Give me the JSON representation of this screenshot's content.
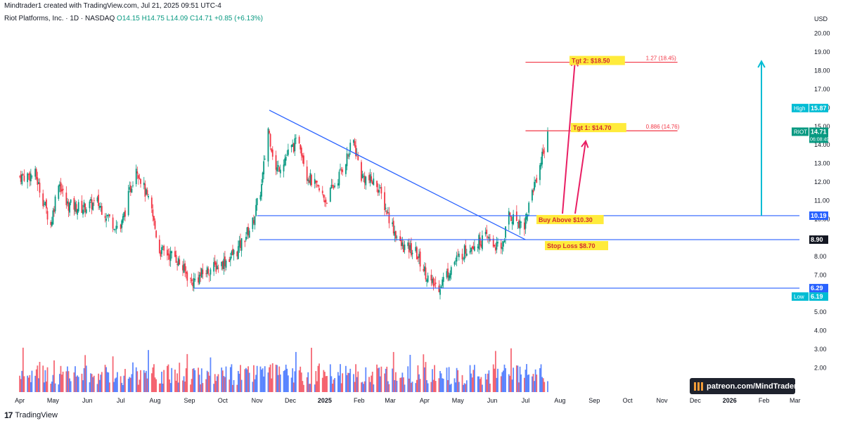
{
  "header": {
    "published_by": "Mindtrader1 created with TradingView.com, Jul 21, 2025 09:51 UTC-4",
    "symbol_line": "Riot Platforms, Inc. · 1D · NASDAQ",
    "ohlc": "O14.15 H14.75 L14.09 C14.71 +0.85 (+6.13%)"
  },
  "footer": {
    "brand": "TradingView",
    "logo": "tradingview-logo-icon"
  },
  "watermark": "patreon.com/MindTrader",
  "colors": {
    "up": "#089981",
    "down": "#f23645",
    "level_line": "#2962ff",
    "target_line": "#f23645",
    "arrow": "#e91e63",
    "move_arrow": "#00bcd4",
    "label_bg": "#ffeb3b",
    "label_text": "#d32f2f",
    "watermark_bg": "#1e222d"
  },
  "chart_data": {
    "type": "candlestick",
    "title": "Riot Platforms, Inc. · 1D · NASDAQ",
    "currency": "USD",
    "y_ticks": [
      2.0,
      3.0,
      4.0,
      5.0,
      6.0,
      7.0,
      8.0,
      9.0,
      10.0,
      11.0,
      12.0,
      13.0,
      14.0,
      15.0,
      16.0,
      17.0,
      18.0,
      19.0,
      20.0
    ],
    "y_range": [
      1.3,
      20.4
    ],
    "x_labels": [
      "Apr",
      "May",
      "Jun",
      "Jul",
      "Aug",
      "Sep",
      "Oct",
      "Nov",
      "Dec",
      "2025",
      "Feb",
      "Mar",
      "Apr",
      "May",
      "Jun",
      "Jul",
      "Aug",
      "Sep",
      "Oct",
      "Nov",
      "Dec",
      "2026",
      "Feb",
      "Mar"
    ],
    "series_close": [
      [
        "2024-04-01",
        12.3
      ],
      [
        "2024-04-15",
        12.4
      ],
      [
        "2024-04-29",
        9.7
      ],
      [
        "2024-05-06",
        12.1
      ],
      [
        "2024-05-13",
        10.8
      ],
      [
        "2024-05-27",
        10.6
      ],
      [
        "2024-06-10",
        10.9
      ],
      [
        "2024-06-24",
        9.8
      ],
      [
        "2024-07-01",
        9.5
      ],
      [
        "2024-07-15",
        12.9
      ],
      [
        "2024-07-29",
        10.4
      ],
      [
        "2024-08-05",
        8.3
      ],
      [
        "2024-08-19",
        8.0
      ],
      [
        "2024-09-03",
        6.6
      ],
      [
        "2024-09-16",
        7.2
      ],
      [
        "2024-09-30",
        7.6
      ],
      [
        "2024-10-14",
        8.3
      ],
      [
        "2024-10-28",
        9.8
      ],
      [
        "2024-11-05",
        11.8
      ],
      [
        "2024-11-11",
        14.9
      ],
      [
        "2024-11-18",
        12.6
      ],
      [
        "2024-12-02",
        13.8
      ],
      [
        "2024-12-09",
        14.3
      ],
      [
        "2024-12-16",
        12.4
      ],
      [
        "2025-01-02",
        11.0
      ],
      [
        "2025-01-13",
        12.2
      ],
      [
        "2025-01-27",
        14.2
      ],
      [
        "2025-02-03",
        12.3
      ],
      [
        "2025-02-17",
        11.9
      ],
      [
        "2025-02-28",
        10.1
      ],
      [
        "2025-03-10",
        8.6
      ],
      [
        "2025-03-24",
        8.2
      ],
      [
        "2025-04-07",
        6.5
      ],
      [
        "2025-04-14",
        6.4
      ],
      [
        "2025-04-28",
        7.7
      ],
      [
        "2025-05-12",
        8.6
      ],
      [
        "2025-05-27",
        9.0
      ],
      [
        "2025-06-09",
        8.3
      ],
      [
        "2025-06-16",
        10.2
      ],
      [
        "2025-06-30",
        9.7
      ],
      [
        "2025-07-07",
        11.5
      ],
      [
        "2025-07-14",
        12.9
      ],
      [
        "2025-07-21",
        14.71
      ]
    ],
    "levels": [
      {
        "name": "Buy Above",
        "value": 10.19,
        "label": "Buy Above $10.30"
      },
      {
        "name": "Stop Loss",
        "value": 8.9,
        "label": "Stop Loss $8.70"
      },
      {
        "name": "Support",
        "value": 6.29
      }
    ],
    "targets": [
      {
        "label": "Tgt 1: $14.70",
        "fib": "0.886 (14.76)",
        "value": 14.76
      },
      {
        "label": "Tgt 2: $18.50",
        "fib": "1.27 (18.45)",
        "value": 18.45
      }
    ],
    "trendline": {
      "from": [
        "2024-11-12",
        15.87
      ],
      "to": [
        "2025-07-01",
        8.9
      ]
    },
    "price_badges": [
      {
        "tag": "",
        "value": "10.19",
        "kind": "blue"
      },
      {
        "tag": "",
        "value": "8.90",
        "kind": "dark"
      },
      {
        "tag": "",
        "value": "6.29",
        "kind": "blue"
      },
      {
        "tag": "RIOT",
        "value": "14.71",
        "sub": "06:08:49",
        "kind": "green"
      },
      {
        "tag": "High",
        "value": "15.87",
        "kind": "cyan"
      },
      {
        "tag": "Low",
        "value": "6.19",
        "kind": "cyan"
      }
    ],
    "grid": false,
    "volume_panel": true
  }
}
